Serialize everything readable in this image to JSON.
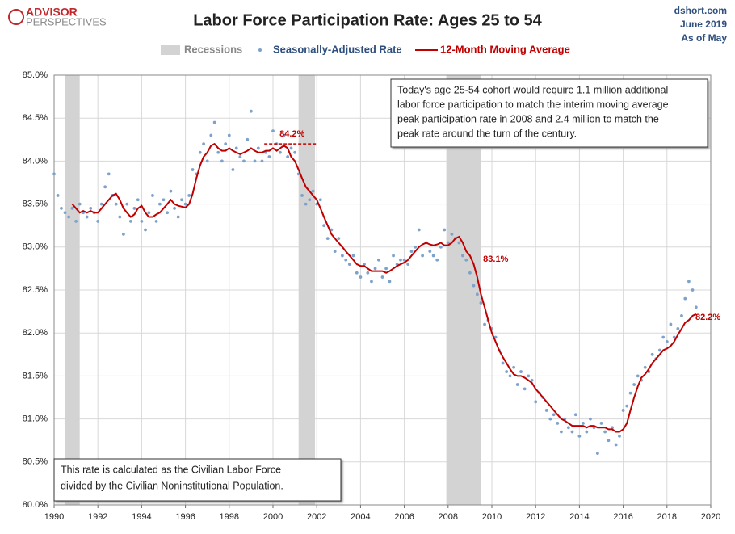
{
  "chart_data": {
    "type": "line",
    "title": "Labor Force Participation Rate: Ages 25 to 54",
    "logo": [
      "ADVISOR",
      "PERSPECTIVES"
    ],
    "source": [
      "dshort.com",
      "June 2019",
      "As of May"
    ],
    "recession_label": "Recessions",
    "recessions": [
      [
        1990.5,
        1991.17
      ],
      [
        2001.17,
        2001.92
      ],
      [
        2007.92,
        2009.5
      ]
    ],
    "recession_color": "#d3d3d3",
    "grid": true,
    "xlim": [
      1990,
      2020
    ],
    "xticks": [
      1990,
      1992,
      1994,
      1996,
      1998,
      2000,
      2002,
      2004,
      2006,
      2008,
      2010,
      2012,
      2014,
      2016,
      2018,
      2020
    ],
    "ylim": [
      80,
      85
    ],
    "yticks": [
      {
        "value": 80,
        "label": "80.0%"
      },
      {
        "value": 80.5,
        "label": "80.5%"
      },
      {
        "value": 81,
        "label": "81.0%"
      },
      {
        "value": 81.5,
        "label": "81.5%"
      },
      {
        "value": 82,
        "label": "82.0%"
      },
      {
        "value": 82.5,
        "label": "82.5%"
      },
      {
        "value": 83,
        "label": "83.0%"
      },
      {
        "value": 83.5,
        "label": "83.5%"
      },
      {
        "value": 84,
        "label": "84.0%"
      },
      {
        "value": 84.5,
        "label": "84.5%"
      },
      {
        "value": 85,
        "label": "85.0%"
      }
    ],
    "x": [
      1990,
      1990.17,
      1990.33,
      1990.5,
      1990.67,
      1990.83,
      1991,
      1991.17,
      1991.33,
      1991.5,
      1991.67,
      1991.83,
      1992,
      1992.17,
      1992.33,
      1992.5,
      1992.67,
      1992.83,
      1993,
      1993.17,
      1993.33,
      1993.5,
      1993.67,
      1993.83,
      1994,
      1994.17,
      1994.33,
      1994.5,
      1994.67,
      1994.83,
      1995,
      1995.17,
      1995.33,
      1995.5,
      1995.67,
      1995.83,
      1996,
      1996.17,
      1996.33,
      1996.5,
      1996.67,
      1996.83,
      1997,
      1997.17,
      1997.33,
      1997.5,
      1997.67,
      1997.83,
      1998,
      1998.17,
      1998.33,
      1998.5,
      1998.67,
      1998.83,
      1999,
      1999.17,
      1999.33,
      1999.5,
      1999.67,
      1999.83,
      2000,
      2000.17,
      2000.33,
      2000.5,
      2000.67,
      2000.83,
      2001,
      2001.17,
      2001.33,
      2001.5,
      2001.67,
      2001.83,
      2002,
      2002.17,
      2002.33,
      2002.5,
      2002.67,
      2002.83,
      2003,
      2003.17,
      2003.33,
      2003.5,
      2003.67,
      2003.83,
      2004,
      2004.17,
      2004.33,
      2004.5,
      2004.67,
      2004.83,
      2005,
      2005.17,
      2005.33,
      2005.5,
      2005.67,
      2005.83,
      2006,
      2006.17,
      2006.33,
      2006.5,
      2006.67,
      2006.83,
      2007,
      2007.17,
      2007.33,
      2007.5,
      2007.67,
      2007.83,
      2008,
      2008.17,
      2008.33,
      2008.5,
      2008.67,
      2008.83,
      2009,
      2009.17,
      2009.33,
      2009.5,
      2009.67,
      2009.83,
      2010,
      2010.17,
      2010.33,
      2010.5,
      2010.67,
      2010.83,
      2011,
      2011.17,
      2011.33,
      2011.5,
      2011.67,
      2011.83,
      2012,
      2012.17,
      2012.33,
      2012.5,
      2012.67,
      2012.83,
      2013,
      2013.17,
      2013.33,
      2013.5,
      2013.67,
      2013.83,
      2014,
      2014.17,
      2014.33,
      2014.5,
      2014.67,
      2014.83,
      2015,
      2015.17,
      2015.33,
      2015.5,
      2015.67,
      2015.83,
      2016,
      2016.17,
      2016.33,
      2016.5,
      2016.67,
      2016.83,
      2017,
      2017.17,
      2017.33,
      2017.5,
      2017.67,
      2017.83,
      2018,
      2018.17,
      2018.33,
      2018.5,
      2018.67,
      2018.83,
      2019,
      2019.17,
      2019.33
    ],
    "series": [
      {
        "name": "Seasonally-Adjusted Rate",
        "color": "#7da2cc",
        "style": "dots",
        "values": [
          83.85,
          83.6,
          83.45,
          83.4,
          83.35,
          83.45,
          83.3,
          83.5,
          83.4,
          83.35,
          83.45,
          83.4,
          83.3,
          83.5,
          83.7,
          83.85,
          83.6,
          83.5,
          83.35,
          83.15,
          83.5,
          83.3,
          83.45,
          83.55,
          83.3,
          83.2,
          83.4,
          83.6,
          83.3,
          83.5,
          83.55,
          83.4,
          83.65,
          83.45,
          83.35,
          83.55,
          83.5,
          83.6,
          83.9,
          83.85,
          84.1,
          84.2,
          84.0,
          84.3,
          84.45,
          84.1,
          84.0,
          84.2,
          84.3,
          83.9,
          84.15,
          84.05,
          84.0,
          84.25,
          84.58,
          84.0,
          84.15,
          84.0,
          84.1,
          84.05,
          84.35,
          84.2,
          84.1,
          84.3,
          84.05,
          84.15,
          84.1,
          83.85,
          83.6,
          83.5,
          83.55,
          83.65,
          83.5,
          83.55,
          83.25,
          83.1,
          83.2,
          82.95,
          83.1,
          82.9,
          82.85,
          82.8,
          82.9,
          82.7,
          82.65,
          82.8,
          82.7,
          82.6,
          82.75,
          82.85,
          82.65,
          82.75,
          82.6,
          82.9,
          82.8,
          82.85,
          82.85,
          82.8,
          82.95,
          83.0,
          83.2,
          82.9,
          83.05,
          82.95,
          82.9,
          82.85,
          83.0,
          83.2,
          83.05,
          83.15,
          83.1,
          83.05,
          82.9,
          82.85,
          82.7,
          82.55,
          82.45,
          82.35,
          82.1,
          82.15,
          82.05,
          81.95,
          81.8,
          81.65,
          81.55,
          81.5,
          81.6,
          81.4,
          81.55,
          81.35,
          81.5,
          81.45,
          81.2,
          81.3,
          81.25,
          81.1,
          81.0,
          81.05,
          80.95,
          80.85,
          81.0,
          80.9,
          80.85,
          81.05,
          80.8,
          80.95,
          80.85,
          81.0,
          80.9,
          80.6,
          80.95,
          80.85,
          80.75,
          80.9,
          80.7,
          80.8,
          81.1,
          81.15,
          81.3,
          81.4,
          81.5,
          81.45,
          81.6,
          81.55,
          81.75,
          81.7,
          81.8,
          81.95,
          81.9,
          82.1,
          81.95,
          82.05,
          82.2,
          82.4,
          82.6,
          82.5,
          82.3
        ]
      },
      {
        "name": "12-Month Moving Average",
        "color": "#c00000",
        "style": "line",
        "values": [
          null,
          null,
          null,
          null,
          null,
          83.5,
          83.45,
          83.4,
          83.42,
          83.4,
          83.42,
          83.4,
          83.4,
          83.45,
          83.5,
          83.55,
          83.6,
          83.62,
          83.55,
          83.45,
          83.4,
          83.35,
          83.38,
          83.45,
          83.48,
          83.4,
          83.35,
          83.35,
          83.38,
          83.4,
          83.45,
          83.5,
          83.55,
          83.5,
          83.48,
          83.47,
          83.46,
          83.5,
          83.62,
          83.8,
          83.95,
          84.05,
          84.1,
          84.18,
          84.2,
          84.15,
          84.12,
          84.12,
          84.15,
          84.12,
          84.1,
          84.08,
          84.1,
          84.12,
          84.15,
          84.12,
          84.1,
          84.1,
          84.12,
          84.12,
          84.15,
          84.12,
          84.15,
          84.18,
          84.15,
          84.05,
          84.0,
          83.9,
          83.8,
          83.7,
          83.65,
          83.6,
          83.55,
          83.45,
          83.35,
          83.25,
          83.15,
          83.1,
          83.05,
          83.0,
          82.95,
          82.9,
          82.85,
          82.8,
          82.78,
          82.78,
          82.75,
          82.72,
          82.72,
          82.72,
          82.72,
          82.7,
          82.72,
          82.75,
          82.78,
          82.8,
          82.82,
          82.85,
          82.9,
          82.95,
          83.0,
          83.03,
          83.05,
          83.03,
          83.02,
          83.03,
          83.05,
          83.02,
          83.02,
          83.05,
          83.1,
          83.12,
          83.05,
          82.95,
          82.9,
          82.8,
          82.65,
          82.45,
          82.3,
          82.15,
          82.0,
          81.9,
          81.8,
          81.72,
          81.65,
          81.58,
          81.52,
          81.5,
          81.5,
          81.48,
          81.45,
          81.42,
          81.35,
          81.3,
          81.25,
          81.2,
          81.15,
          81.1,
          81.05,
          81.0,
          80.98,
          80.95,
          80.92,
          80.92,
          80.92,
          80.92,
          80.9,
          80.92,
          80.92,
          80.9,
          80.9,
          80.9,
          80.88,
          80.88,
          80.85,
          80.85,
          80.88,
          80.95,
          81.1,
          81.25,
          81.38,
          81.48,
          81.52,
          81.58,
          81.65,
          81.7,
          81.75,
          81.8,
          81.82,
          81.85,
          81.9,
          81.98,
          82.05,
          82.12,
          82.15,
          82.2,
          82.22
        ]
      }
    ],
    "annotations": [
      {
        "text": "84.2%",
        "value": 84.2
      },
      {
        "text": "83.1%",
        "value": 83.1
      },
      {
        "text": "82.2%",
        "value": 82.2
      }
    ],
    "note_top": [
      "Today's age 25-54  cohort would require 1.1 million additional",
      "labor force participation to match the interim moving average",
      "peak participation rate in 2008  and 2.4 million to match the",
      "peak rate around the turn of the century."
    ],
    "note_bottom": [
      "This rate is calculated as the Civilian Labor Force",
      "divided by the Civilian Noninstitutional Population."
    ]
  }
}
